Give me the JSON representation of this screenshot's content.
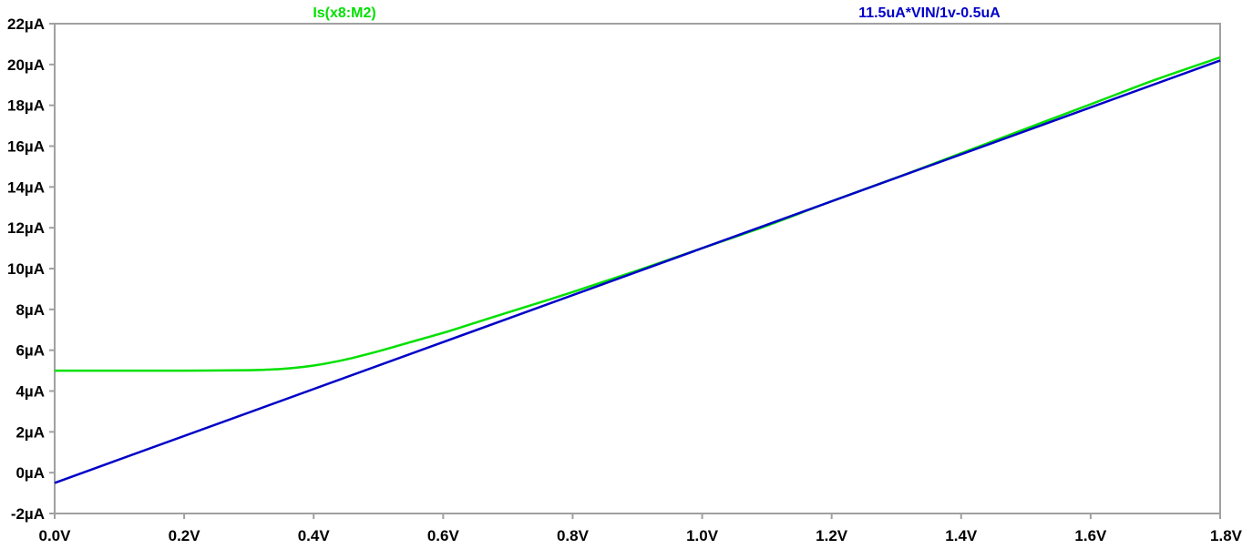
{
  "chart_data": {
    "type": "line",
    "title": "",
    "xlabel": "",
    "ylabel": "",
    "xlim": [
      0,
      1.8
    ],
    "ylim": [
      -2,
      22
    ],
    "x_ticks": [
      "0.0V",
      "0.2V",
      "0.4V",
      "0.6V",
      "0.8V",
      "1.0V",
      "1.2V",
      "1.4V",
      "1.6V",
      "1.8V"
    ],
    "y_ticks": [
      "22µA",
      "20µA",
      "18µA",
      "16µA",
      "14µA",
      "12µA",
      "10µA",
      "8µA",
      "6µA",
      "4µA",
      "2µA",
      "0µA",
      "-2µA"
    ],
    "grid": false,
    "legend": "top",
    "series": [
      {
        "name": "Is(x8:M2)",
        "color": "#00e000",
        "x": [
          0,
          0.1,
          0.2,
          0.3,
          0.35,
          0.4,
          0.45,
          0.5,
          0.55,
          0.6,
          0.65,
          0.7,
          0.8,
          0.9,
          1.0,
          1.1,
          1.2,
          1.3,
          1.4,
          1.5,
          1.6,
          1.7,
          1.8
        ],
        "y": [
          5.0,
          5.0,
          5.0,
          5.02,
          5.08,
          5.25,
          5.55,
          5.95,
          6.4,
          6.85,
          7.35,
          7.85,
          8.85,
          9.9,
          11.0,
          12.1,
          13.3,
          14.45,
          15.65,
          16.85,
          18.05,
          19.25,
          20.35
        ]
      },
      {
        "name": "11.5uA*VIN/1v-0.5uA",
        "color": "#0000c8",
        "x": [
          0,
          1.8
        ],
        "y": [
          -0.5,
          20.2
        ]
      }
    ]
  }
}
